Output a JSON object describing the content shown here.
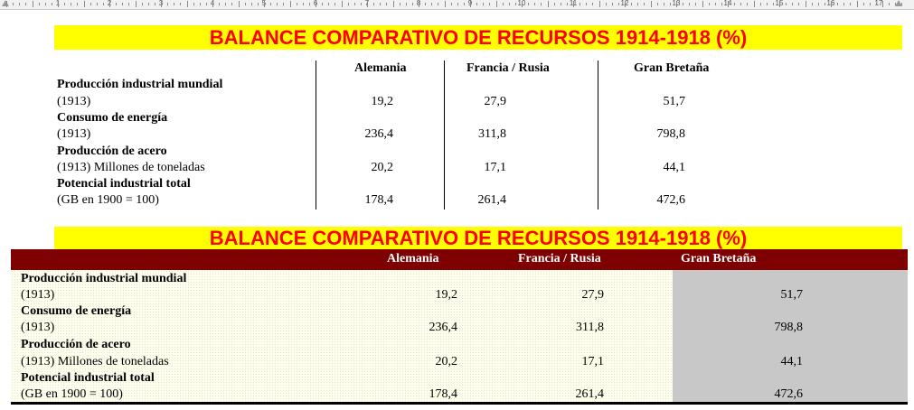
{
  "ruler": {
    "numbers": [
      "1",
      "2",
      "3",
      "4",
      "5",
      "6",
      "7",
      "8",
      "9",
      "10",
      "11",
      "12",
      "13",
      "14",
      "15",
      "16",
      "17"
    ]
  },
  "title": "BALANCE COMPARATIVO DE RECURSOS 1914-1918 (%)",
  "columns": [
    "Alemania",
    "Francia / Rusia",
    "Gran Bretaña"
  ],
  "rows": [
    {
      "label": "Producción industrial mundial",
      "sublabel": "(1913)",
      "values": [
        "19,2",
        "27,9",
        "51,7"
      ]
    },
    {
      "label": "Consumo de energía",
      "sublabel": "(1913)",
      "values": [
        "236,4",
        "311,8",
        "798,8"
      ]
    },
    {
      "label": "Producción de acero",
      "sublabel": "(1913) Millones de toneladas",
      "values": [
        "20,2",
        "17,1",
        "44,1"
      ]
    },
    {
      "label": "Potencial industrial total",
      "sublabel": "(GB en 1900 = 100)",
      "values": [
        "178,4",
        "261,4",
        "472,6"
      ]
    }
  ],
  "colors": {
    "banner_bg": "#ffff00",
    "banner_text": "#ff0000",
    "header_bg": "#7f0000",
    "highlight_col": "#c8c8c8"
  }
}
